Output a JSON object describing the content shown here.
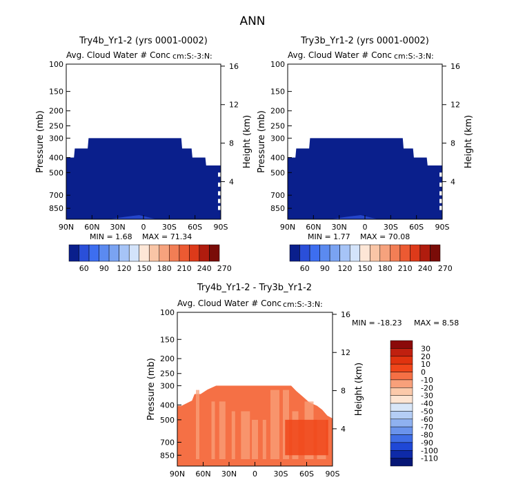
{
  "figure": {
    "title": "ANN",
    "field_label": "Avg. Cloud Water # Conc",
    "units_label": "cm:S:-3:N:",
    "pressure_axis_label": "Pressure  (mb)",
    "height_axis_label": "Height  (km)"
  },
  "chart_data": [
    {
      "id": "panel-1",
      "type": "heatmap",
      "title": "Try4b_Yr1-2 (yrs 0001-0002)",
      "subtitle": "Avg. Cloud Water # Conc",
      "units": "cm:S:-3:N:",
      "xlabel": "",
      "ylabel": "Pressure  (mb)",
      "y2label": "Height  (km)",
      "x_ticks": [
        "90N",
        "60N",
        "30N",
        "0",
        "30S",
        "60S",
        "90S"
      ],
      "y_ticks": [
        100,
        150,
        200,
        250,
        300,
        400,
        500,
        700,
        850
      ],
      "y2_ticks": [
        4,
        8,
        12,
        16
      ],
      "ylim": [
        100,
        1000
      ],
      "min_label": "MIN =    1.68",
      "max_label": "MAX =   71.34",
      "min": 1.68,
      "max": 71.34,
      "mask_top_by_lat": [
        {
          "lat": 90,
          "p": 400
        },
        {
          "lat": 80,
          "p": 350
        },
        {
          "lat": 65,
          "p": 300
        },
        {
          "lat": -45,
          "p": 300
        },
        {
          "lat": -55,
          "p": 350
        },
        {
          "lat": -65,
          "p": 400
        },
        {
          "lat": -75,
          "p": 450
        },
        {
          "lat": -85,
          "p": 450
        },
        {
          "lat": -90,
          "p": 450
        }
      ],
      "colorbar": {
        "labels": [
          "60",
          "90",
          "120",
          "150",
          "180",
          "210",
          "240",
          "270"
        ],
        "colors": [
          "#0a1f8c",
          "#2a4fd9",
          "#3d6ef0",
          "#5b8af0",
          "#7aa3f2",
          "#a6c4f7",
          "#d3e3fa",
          "#fde6d6",
          "#f9c5a6",
          "#f6a27d",
          "#f27e55",
          "#ec5a32",
          "#dd3a1a",
          "#b01c0e",
          "#7a0c08"
        ]
      }
    },
    {
      "id": "panel-2",
      "type": "heatmap",
      "title": "Try3b_Yr1-2 (yrs 0001-0002)",
      "subtitle": "Avg. Cloud Water # Conc",
      "units": "cm:S:-3:N:",
      "xlabel": "",
      "ylabel": "Pressure  (mb)",
      "y2label": "Height  (km)",
      "x_ticks": [
        "90N",
        "60N",
        "30N",
        "0",
        "30S",
        "60S",
        "90S"
      ],
      "y_ticks": [
        100,
        150,
        200,
        250,
        300,
        400,
        500,
        700,
        850
      ],
      "y2_ticks": [
        4,
        8,
        12,
        16
      ],
      "ylim": [
        100,
        1000
      ],
      "min_label": "MIN =    1.77",
      "max_label": "MAX =   70.08",
      "min": 1.77,
      "max": 70.08,
      "colorbar": {
        "labels": [
          "60",
          "90",
          "120",
          "150",
          "180",
          "210",
          "240",
          "270"
        ]
      }
    },
    {
      "id": "panel-3",
      "type": "heatmap",
      "title": "Try4b_Yr1-2 - Try3b_Yr1-2",
      "subtitle": "Avg. Cloud Water # Conc",
      "units": "cm:S:-3:N:",
      "xlabel": "",
      "ylabel": "Pressure  (mb)",
      "y2label": "Height  (km)",
      "x_ticks": [
        "90N",
        "60N",
        "30N",
        "0",
        "30S",
        "60S",
        "90S"
      ],
      "y_ticks": [
        100,
        150,
        200,
        250,
        300,
        400,
        500,
        700,
        850
      ],
      "y2_ticks": [
        4,
        8,
        12,
        16
      ],
      "ylim": [
        100,
        1000
      ],
      "min_label": "MIN = -18.23",
      "max_label": "MAX =    8.58",
      "min": -18.23,
      "max": 8.58,
      "colorbar": {
        "labels": [
          "30",
          "20",
          "10",
          "0",
          "-10",
          "-20",
          "-30",
          "-40",
          "-50",
          "-60",
          "-70",
          "-80",
          "-90",
          "-100",
          "-110"
        ],
        "colors": [
          "#8b0a0a",
          "#c0200f",
          "#e0330f",
          "#f0461a",
          "#f57045",
          "#f8a07a",
          "#fbc9aa",
          "#fde4d2",
          "#d8e6f8",
          "#b4cdf5",
          "#8fb1f0",
          "#6a93ec",
          "#3f6de6",
          "#1f48d6",
          "#0e2aa8",
          "#061675"
        ]
      }
    }
  ]
}
